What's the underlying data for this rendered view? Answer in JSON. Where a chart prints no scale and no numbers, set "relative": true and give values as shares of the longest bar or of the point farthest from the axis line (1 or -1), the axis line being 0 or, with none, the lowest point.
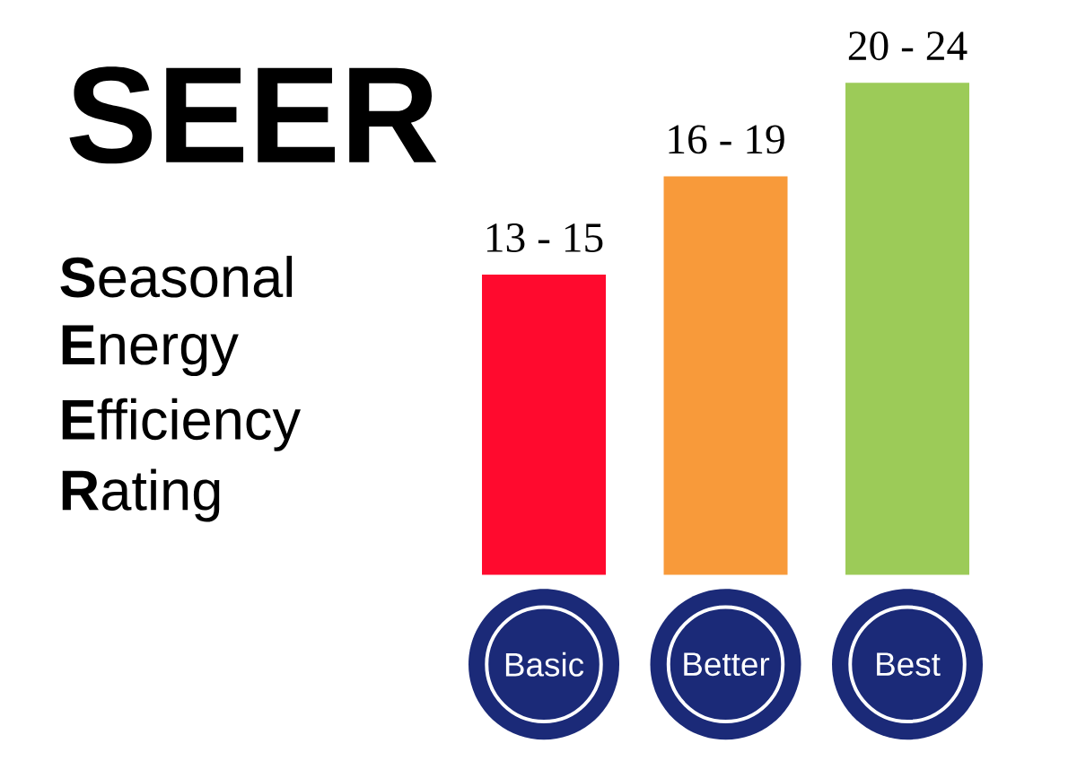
{
  "chart_data": {
    "type": "bar",
    "title": "SEER",
    "annotations": [
      "**S**easonal",
      "**E**nergy",
      "**E**fficiency",
      "**R**ating",
      {
        "text": "13 - 15",
        "x": "Basic",
        "y": 0.61
      },
      {
        "text": "16 - 19",
        "x": "Better",
        "y": 0.81
      },
      {
        "text": "20 - 24",
        "x": "Best",
        "y": 1
      }
    ],
    "categories": [
      "Basic",
      "Better",
      "Best"
    ],
    "values": [
      0.61,
      0.81,
      1
    ],
    "colors": [
      "#ff0a2e",
      "#f89a3a",
      "#9ccb58"
    ],
    "relative": true
  }
}
